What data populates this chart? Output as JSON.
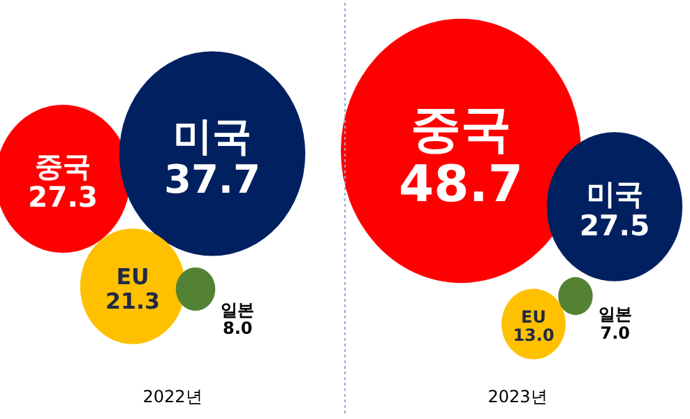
{
  "chart_data": [
    {
      "type": "other",
      "xlabel": "2022년",
      "categories": [
        "중국",
        "미국",
        "EU",
        "일본"
      ],
      "values": [
        27.3,
        37.7,
        21.3,
        8.0
      ],
      "value_labels": [
        "27.3",
        "37.7",
        "21.3",
        "8.0"
      ],
      "colors": [
        "#ff0000",
        "#002060",
        "#ffc000",
        "#548235"
      ]
    },
    {
      "type": "other",
      "xlabel": "2023년",
      "categories": [
        "중국",
        "미국",
        "EU",
        "일본"
      ],
      "values": [
        48.7,
        27.5,
        13.0,
        7.0
      ],
      "value_labels": [
        "48.7",
        "27.5",
        "13.0",
        "7.0"
      ],
      "colors": [
        "#ff0000",
        "#002060",
        "#ffc000",
        "#548235"
      ]
    }
  ]
}
